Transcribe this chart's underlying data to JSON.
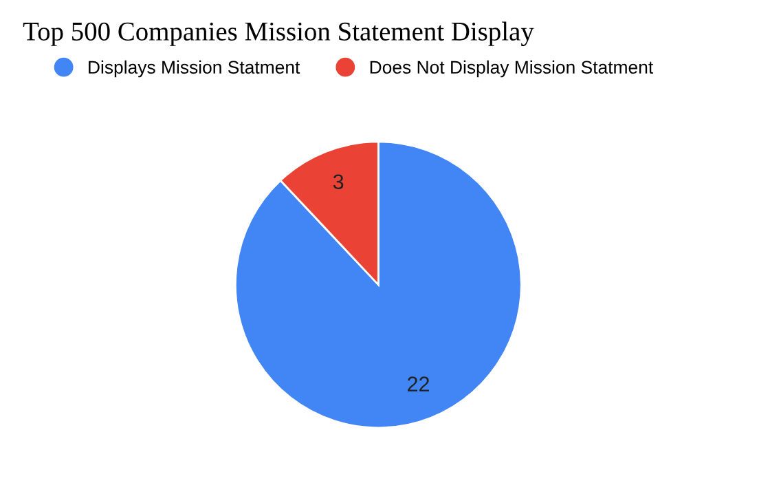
{
  "chart_data": {
    "type": "pie",
    "title": "Top 500 Companies Mission Statement Display",
    "categories": [
      "Displays Mission Statment",
      "Does Not Display Mission Statment"
    ],
    "values": [
      22,
      3
    ],
    "colors": [
      "#4285f4",
      "#ea4335"
    ],
    "data_labels": true,
    "legend": "top"
  }
}
